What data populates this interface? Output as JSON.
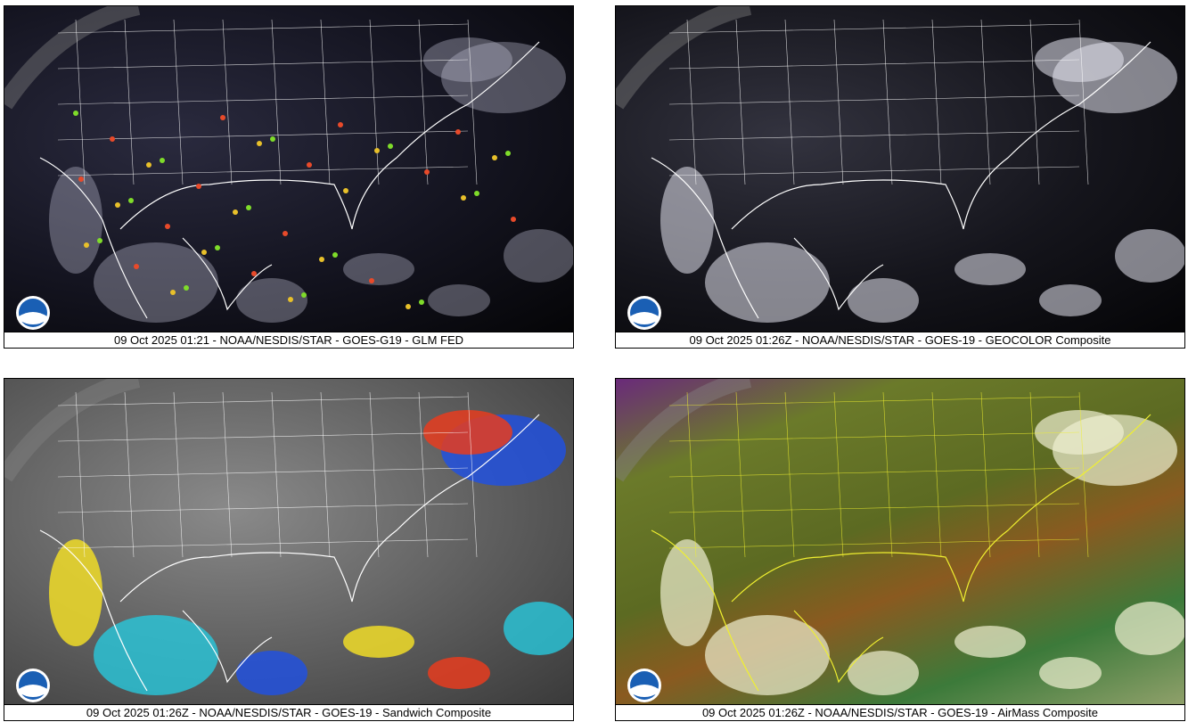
{
  "panels": [
    {
      "caption": "09 Oct 2025 01:21 - NOAA/NESDIS/STAR - GOES-G19 - GLM FED"
    },
    {
      "caption": "09 Oct 2025 01:26Z - NOAA/NESDIS/STAR - GOES-19 - GEOCOLOR Composite"
    },
    {
      "caption": "09 Oct 2025 01:26Z - NOAA/NESDIS/STAR - GOES-19 - Sandwich Composite"
    },
    {
      "caption": "09 Oct 2025 01:26Z - NOAA/NESDIS/STAR - GOES-19 - AirMass Composite"
    }
  ]
}
